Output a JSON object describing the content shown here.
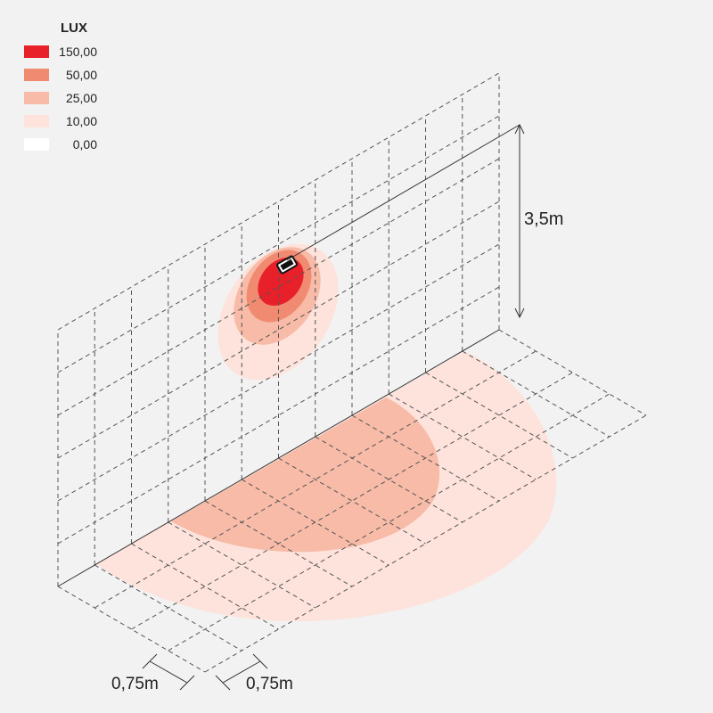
{
  "legend": {
    "title": "LUX",
    "items": [
      {
        "label": "150,00",
        "color": "#e8202a"
      },
      {
        "label": "50,00",
        "color": "#f08b72"
      },
      {
        "label": "25,00",
        "color": "#f7bba8"
      },
      {
        "label": "10,00",
        "color": "#fde3db"
      },
      {
        "label": "0,00",
        "color": "#ffffff"
      }
    ]
  },
  "dimensions": {
    "height": "3,5m",
    "grid_x": "0,75m",
    "grid_y": "0,75m"
  }
}
